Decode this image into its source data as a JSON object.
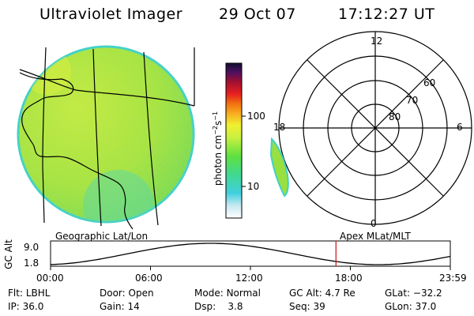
{
  "header": {
    "instrument": "Ultraviolet Imager",
    "date": "29 Oct 07",
    "time": "17:12:27 UT"
  },
  "colorbar": {
    "unit_label": "photon cm",
    "unit_exp1": "−2",
    "unit_mid": "s",
    "unit_exp2": "−1",
    "tick_100": "100",
    "tick_10": "10"
  },
  "polar_plot": {
    "mlt_labels": [
      "12",
      "18",
      "6",
      "0"
    ],
    "lat_labels": [
      "60",
      "70",
      "80"
    ]
  },
  "orbit_strip": {
    "left_label": "Geographic Lat/Lon",
    "right_label": "Apex MLat/MLT",
    "axis_label": "GC Alt",
    "y_max": "9.0",
    "y_min": "1.8",
    "time_ticks": [
      "00:00",
      "06:00",
      "12:00",
      "18:00",
      "23:59"
    ],
    "current_time_fraction": 0.714
  },
  "status": {
    "row1": [
      {
        "label": "Flt:",
        "value": "LBHL"
      },
      {
        "label": "Door:",
        "value": "Open"
      },
      {
        "label": "Mode:",
        "value": "Normal"
      },
      {
        "label": "GC Alt:",
        "value": "4.7 Re"
      },
      {
        "label": "GLat:",
        "value": "−32.2"
      }
    ],
    "row2": [
      {
        "label": "IP:",
        "value": "36.0"
      },
      {
        "label": "Gain:",
        "value": "14"
      },
      {
        "label": "Dsp:",
        "value": "3.8"
      },
      {
        "label": "Seq:",
        "value": "39"
      },
      {
        "label": "GLon:",
        "value": "37.0"
      }
    ]
  },
  "colors": {
    "disk_fill": "#a8e23c",
    "disk_edge": "#40d0c8",
    "marker": "#d02020"
  }
}
